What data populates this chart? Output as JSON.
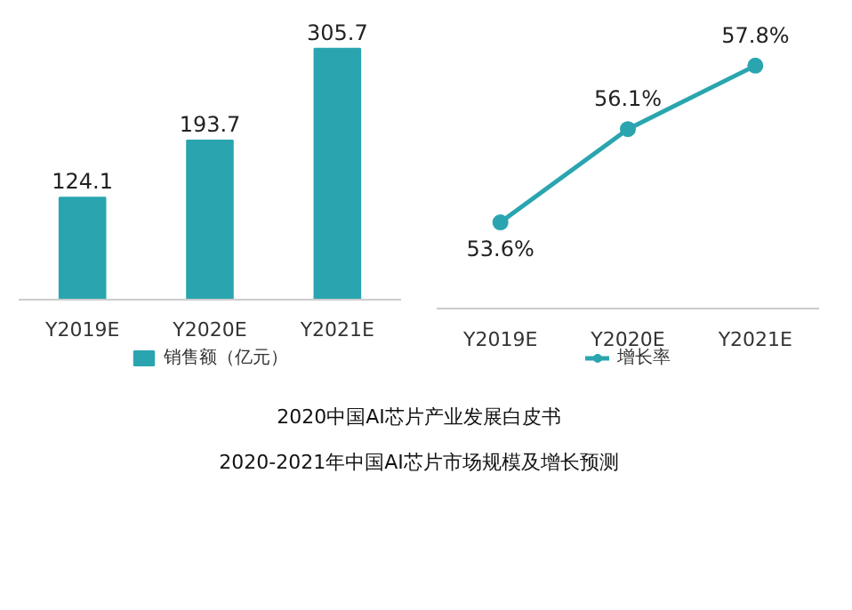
{
  "chart_data": [
    {
      "type": "bar",
      "categories": [
        "Y2019E",
        "Y2020E",
        "Y2021E"
      ],
      "series": [
        {
          "name": "销售额（亿元）",
          "color": "#2aa5b0",
          "values": [
            124.1,
            193.7,
            305.7
          ]
        }
      ],
      "data_labels": true,
      "grid": false,
      "legend": "bottom",
      "annotations": [
        "2020中国AI芯片产业发展白皮书",
        "2020-2021年中国AI芯片市场规模及增长预测"
      ]
    },
    {
      "type": "line",
      "categories": [
        "Y2019E",
        "Y2020E",
        "Y2021E"
      ],
      "series": [
        {
          "name": "增长率",
          "color": "#2aa5b0",
          "values": [
            53.6,
            56.1,
            57.8
          ],
          "value_labels": [
            "53.6%",
            "56.1%",
            "57.8%"
          ]
        }
      ],
      "marker": "circle",
      "grid": false,
      "legend": "bottom"
    }
  ]
}
